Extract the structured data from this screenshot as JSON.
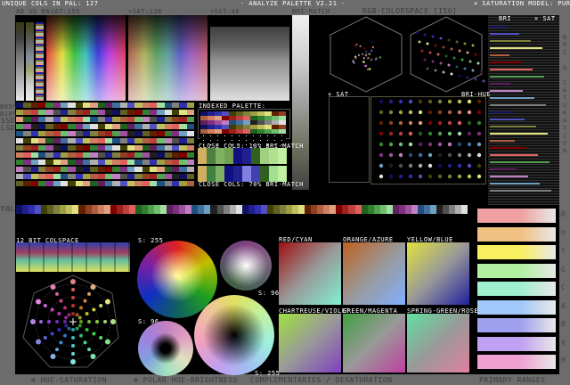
{
  "header": {
    "unique_cols": "UNIQUE COLS IN PAL: 127",
    "title": "- ANALYZE PALETTE V2.21 -",
    "sat_model": "× SATURATION MODEL: PURITY"
  },
  "top_labels": {
    "bars": "AD SD BS",
    "sat255": "×SAT:255",
    "sat128": "×SAT:128",
    "sat48": "×SAT:48",
    "bri_match": "BRI-MATCH",
    "rgb_space": "RGB-COLORSPACE [ISO]"
  },
  "side_labels": {
    "b65": "B65%",
    "b10": "B10%",
    "ssd": "SSD",
    "lsd": "LSD",
    "pal": "PAL"
  },
  "indexed": {
    "title": "INDEXED PALETTE:",
    "close10": "CLOSE COLS: 10% BRI-MATCH",
    "close70": "CLOSE COLS: 70% BRI-MATCH"
  },
  "scatter": {
    "sat": "× SAT",
    "bri_hue": "BRI-HUE"
  },
  "bri_column": {
    "bri": "BRI",
    "sat": "× SAT",
    "vertical": "BRI & SATURATION"
  },
  "colspace": {
    "title": "12 BIT COLSPACE"
  },
  "discs": {
    "s255a": "S: 255",
    "s96a": "S: 96",
    "s96b": "S: 96",
    "s255b": "S: 255"
  },
  "complements": [
    {
      "label": "RED/CYAN",
      "a": "#a01010",
      "b": "#80f0d0"
    },
    {
      "label": "ORANGE/AZURE",
      "a": "#c06020",
      "b": "#80b0ff"
    },
    {
      "label": "YELLOW/BLUE",
      "a": "#e0e040",
      "b": "#2020a0"
    },
    {
      "label": "CHARTREUSE/VIOLET",
      "a": "#a0e040",
      "b": "#8040c0"
    },
    {
      "label": "GREEN/MAGENTA",
      "a": "#40a040",
      "b": "#c040a0"
    },
    {
      "label": "SPRING-GREEN/ROSE",
      "a": "#60e0a0",
      "b": "#e080a0"
    }
  ],
  "primary_ranges": {
    "letters": [
      "R",
      "O",
      "Y",
      "G",
      "C",
      "A",
      "B",
      "V",
      "M"
    ],
    "colors": [
      "#f0a0a0",
      "#f0c080",
      "#f8f060",
      "#b0f0a0",
      "#a0f0d0",
      "#a0c8f8",
      "#a0a0f0",
      "#c0a0f0",
      "#f0a0d0"
    ]
  },
  "footer": {
    "hue_sat": "✻ HUE-SATURATION",
    "polar": "✻ POLAR HUE-BRIGHTNESS",
    "compl": "COMPLEMENTARIES / DESATURATION",
    "primary": "PRIMARY RANGES"
  },
  "palette_colors": [
    "#101060",
    "#202090",
    "#3030b0",
    "#5050c0",
    "#404000",
    "#606020",
    "#808040",
    "#a0a040",
    "#c0c060",
    "#e0e080",
    "#602000",
    "#904020",
    "#b06040",
    "#d08060",
    "#e0a080",
    "#800000",
    "#a02020",
    "#c04040",
    "#e06060",
    "#206020",
    "#308030",
    "#50a050",
    "#70c070",
    "#a0e0a0",
    "#602060",
    "#803080",
    "#a050a0",
    "#c080c0",
    "#205080",
    "#4070a0",
    "#70a0c0",
    "#202020",
    "#505050",
    "#808080",
    "#b0b0b0",
    "#e0e0e0"
  ]
}
